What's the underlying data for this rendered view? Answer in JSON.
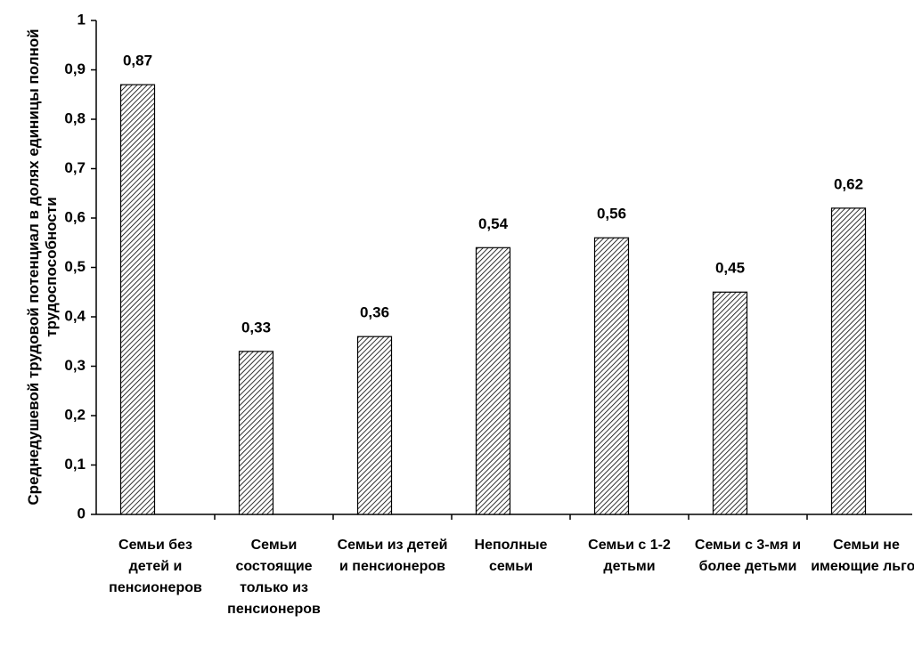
{
  "chart_data": {
    "type": "bar",
    "y_axis_label": "Среднедушевой трудовой потенциал в долях единицы полной трудоспособности",
    "categories": [
      "Семьи без детей и пенсионеров",
      "Семьи состоящие только из пенсионеров",
      "Семьи из детей и пенсионеров",
      "Неполные семьи",
      "Семьи с 1-2 детьми",
      "Семьи с 3-мя и более детьми",
      "Семьи не имеющие льгот"
    ],
    "values": [
      0.87,
      0.33,
      0.36,
      0.54,
      0.56,
      0.45,
      0.62
    ],
    "value_labels": [
      "0,87",
      "0,33",
      "0,36",
      "0,54",
      "0,56",
      "0,45",
      "0,62"
    ],
    "color": "#000000",
    "ylim": [
      0,
      1
    ],
    "yticks": [
      0,
      {
        "value": 0.1,
        "label": "0,1"
      },
      {
        "value": 0.2,
        "label": "0,2"
      },
      {
        "value": 0.3,
        "label": "0,3"
      },
      {
        "value": 0.4,
        "label": "0,4"
      },
      {
        "value": 0.5,
        "label": "0,5"
      },
      {
        "value": 0.6,
        "label": "0,6"
      },
      {
        "value": 0.7,
        "label": "0,7"
      },
      {
        "value": 0.8,
        "label": "0,8"
      },
      {
        "value": 0.9,
        "label": "0,9"
      },
      1
    ],
    "grid": false
  }
}
